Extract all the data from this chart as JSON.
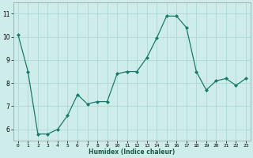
{
  "x": [
    0,
    1,
    2,
    3,
    4,
    5,
    6,
    7,
    8,
    9,
    10,
    11,
    12,
    13,
    14,
    15,
    16,
    17,
    18,
    19,
    20,
    21,
    22,
    23
  ],
  "y": [
    10.1,
    8.5,
    5.8,
    5.8,
    6.0,
    6.6,
    7.5,
    7.1,
    7.2,
    7.2,
    8.4,
    8.5,
    8.5,
    9.1,
    9.95,
    10.9,
    10.9,
    10.4,
    8.5,
    7.7,
    8.1,
    8.2,
    7.9,
    8.2
  ],
  "line_color": "#1a7a6a",
  "marker": "D",
  "marker_size": 2,
  "bg_color": "#ceecea",
  "grid_color": "#aed8d4",
  "xlabel": "Humidex (Indice chaleur)",
  "xlim": [
    -0.5,
    23.5
  ],
  "ylim": [
    5.5,
    11.5
  ],
  "yticks": [
    6,
    7,
    8,
    9,
    10,
    11
  ],
  "xticks": [
    0,
    1,
    2,
    3,
    4,
    5,
    6,
    7,
    8,
    9,
    10,
    11,
    12,
    13,
    14,
    15,
    16,
    17,
    18,
    19,
    20,
    21,
    22,
    23
  ]
}
